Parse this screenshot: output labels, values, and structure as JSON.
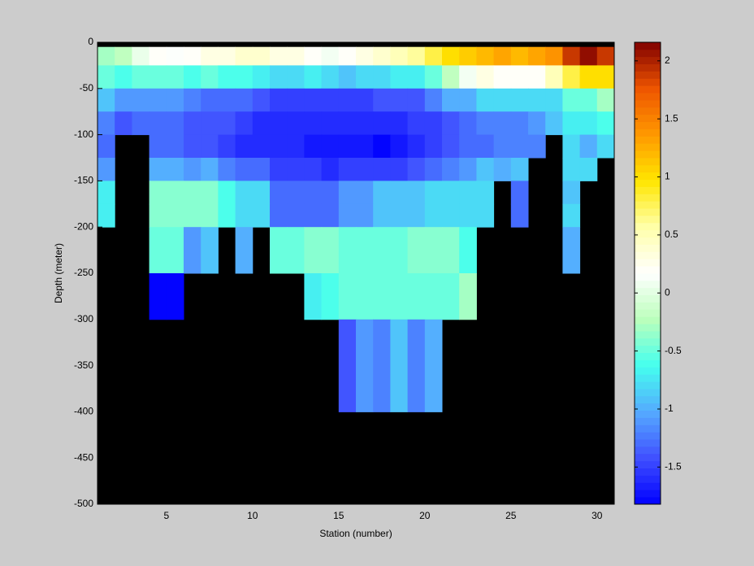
{
  "chart_data": {
    "type": "heatmap",
    "xlabel": "Station (number)",
    "ylabel": "Depth (meter)",
    "x_edges": [
      1,
      2,
      3,
      4,
      5,
      6,
      7,
      8,
      9,
      10,
      11,
      12,
      13,
      14,
      15,
      16,
      17,
      18,
      19,
      20,
      21,
      22,
      23,
      24,
      25,
      26,
      27,
      28,
      29,
      30,
      31
    ],
    "y_edges": [
      -5,
      -25,
      -50,
      -75,
      -100,
      -125,
      -150,
      -175,
      -200,
      -250,
      -300,
      -400
    ],
    "z": [
      [
        -0.3,
        -0.2,
        0.05,
        0.2,
        0.15,
        0.2,
        0.3,
        0.3,
        0.4,
        0.4,
        0.3,
        0.3,
        0.2,
        0.1,
        0.2,
        0.3,
        0.4,
        0.5,
        0.6,
        0.8,
        1.0,
        1.1,
        1.2,
        1.3,
        1.2,
        1.3,
        1.4,
        1.9,
        2.1,
        1.9
      ],
      [
        -0.5,
        -0.6,
        -0.5,
        -0.5,
        -0.5,
        -0.6,
        -0.5,
        -0.6,
        -0.6,
        -0.7,
        -0.8,
        -0.8,
        -0.7,
        -0.8,
        -0.9,
        -0.8,
        -0.8,
        -0.7,
        -0.7,
        -0.5,
        -0.2,
        0.1,
        0.3,
        0.2,
        0.2,
        0.2,
        0.5,
        0.8,
        1.0,
        1.0
      ],
      [
        -0.9,
        -1.1,
        -1.1,
        -1.1,
        -1.1,
        -1.2,
        -1.3,
        -1.3,
        -1.3,
        -1.4,
        -1.5,
        -1.5,
        -1.5,
        -1.5,
        -1.5,
        -1.5,
        -1.4,
        -1.4,
        -1.4,
        -1.2,
        -1.0,
        -1.0,
        -0.8,
        -0.8,
        -0.8,
        -0.8,
        -0.8,
        -0.5,
        -0.5,
        -0.3
      ],
      [
        -1.2,
        -1.4,
        -1.3,
        -1.3,
        -1.3,
        -1.4,
        -1.4,
        -1.4,
        -1.5,
        -1.6,
        -1.6,
        -1.6,
        -1.6,
        -1.6,
        -1.6,
        -1.6,
        -1.6,
        -1.6,
        -1.5,
        -1.5,
        -1.4,
        -1.3,
        -1.2,
        -1.2,
        -1.2,
        -1.1,
        -0.9,
        -0.7,
        -0.7,
        -0.6
      ],
      [
        -1.3,
        null,
        null,
        -1.3,
        -1.3,
        -1.4,
        -1.4,
        -1.5,
        -1.6,
        -1.6,
        -1.6,
        -1.6,
        -1.7,
        -1.7,
        -1.7,
        -1.7,
        -1.8,
        -1.7,
        -1.6,
        -1.5,
        -1.4,
        -1.3,
        -1.3,
        -1.2,
        -1.2,
        -1.2,
        null,
        -0.8,
        -1.0,
        -0.8
      ],
      [
        -1.1,
        null,
        null,
        -1.0,
        -1.0,
        -1.1,
        -1.0,
        -1.2,
        -1.3,
        -1.3,
        -1.5,
        -1.5,
        -1.5,
        -1.6,
        -1.5,
        -1.5,
        -1.5,
        -1.5,
        -1.4,
        -1.3,
        -1.2,
        -1.1,
        -0.9,
        -1.0,
        -0.9,
        null,
        null,
        -0.8,
        -0.8,
        null
      ],
      [
        -0.7,
        null,
        null,
        -0.4,
        -0.4,
        -0.4,
        -0.4,
        -0.6,
        -0.8,
        -0.8,
        -1.3,
        -1.3,
        -1.3,
        -1.3,
        -1.1,
        -1.1,
        -0.9,
        -0.9,
        -0.9,
        -0.8,
        -0.8,
        -0.8,
        -0.8,
        null,
        -1.3,
        null,
        null,
        -0.9,
        null,
        null
      ],
      [
        -0.7,
        null,
        null,
        -0.4,
        -0.4,
        -0.4,
        -0.4,
        -0.6,
        -0.8,
        -0.8,
        -1.3,
        -1.3,
        -1.3,
        -1.3,
        -1.1,
        -1.1,
        -0.9,
        -0.9,
        -0.9,
        -0.8,
        -0.8,
        -0.8,
        -0.8,
        null,
        -1.3,
        null,
        null,
        -0.8,
        null,
        null
      ],
      [
        null,
        null,
        null,
        -0.5,
        -0.5,
        -1.1,
        -0.9,
        null,
        -1.0,
        null,
        -0.5,
        -0.5,
        -0.4,
        -0.4,
        -0.5,
        -0.5,
        -0.5,
        -0.5,
        -0.4,
        -0.4,
        -0.4,
        -0.6,
        null,
        null,
        null,
        null,
        null,
        -1.0,
        null,
        null
      ],
      [
        null,
        null,
        null,
        -1.8,
        -1.8,
        null,
        null,
        null,
        null,
        null,
        null,
        null,
        -0.7,
        -0.6,
        -0.5,
        -0.5,
        -0.5,
        -0.5,
        -0.5,
        -0.5,
        -0.5,
        -0.3,
        null,
        null,
        null,
        null,
        null,
        null,
        null,
        null
      ],
      [
        null,
        null,
        null,
        null,
        null,
        null,
        null,
        null,
        null,
        null,
        null,
        null,
        null,
        null,
        -1.4,
        -1.1,
        -1.2,
        -0.9,
        -1.2,
        -1.0,
        null,
        null,
        null,
        null,
        null,
        null,
        null,
        null,
        null,
        null
      ]
    ],
    "xlim": [
      1,
      31
    ],
    "ylim": [
      -500,
      0
    ],
    "xticks": [
      5,
      10,
      15,
      20,
      25,
      30
    ],
    "yticks": [
      0,
      -50,
      -100,
      -150,
      -200,
      -250,
      -300,
      -350,
      -400,
      -450,
      -500
    ],
    "clim": [
      -1.82,
      2.16
    ],
    "cticks": [
      -1.5,
      -1,
      -0.5,
      0,
      0.5,
      1,
      1.5,
      2
    ],
    "colormap": [
      "#0000ff",
      "#4050ff",
      "#55aaff",
      "#44ffee",
      "#bbffbb",
      "#ffffff",
      "#ffffaa",
      "#ffe600",
      "#ff9900",
      "#ee5500",
      "#800000"
    ],
    "background": "#000000"
  }
}
